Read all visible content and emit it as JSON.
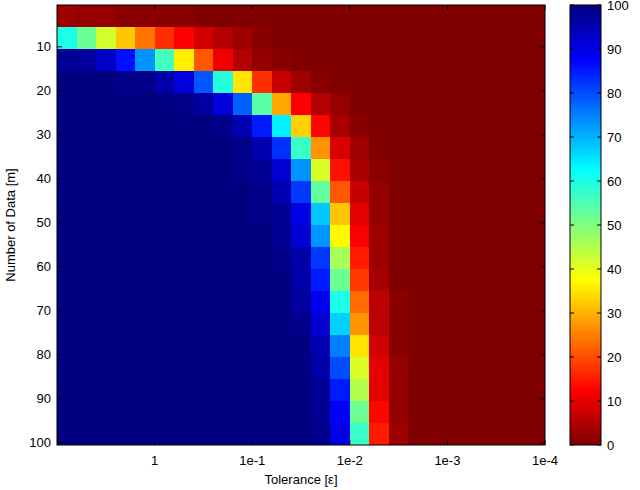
{
  "chart_data": {
    "type": "heatmap",
    "xlabel": "Tolerance [ε]",
    "ylabel": "Number of Data [m]",
    "log": "x",
    "xlim": [
      10,
      0.0001
    ],
    "xticks": [
      1,
      {
        "value": 0.1,
        "label": "1e-1"
      },
      {
        "value": 0.01,
        "label": "1e-2"
      },
      {
        "value": 0.001,
        "label": "1e-3"
      },
      {
        "value": 0.0001,
        "label": "1e-4"
      }
    ],
    "ylim": [
      0.5,
      100.5
    ],
    "yticks": [
      10,
      20,
      30,
      40,
      50,
      60,
      70,
      80,
      90,
      100
    ],
    "x_bins": [
      10,
      6.31,
      3.98,
      2.51,
      1.585,
      1,
      0.631,
      0.398,
      0.251,
      0.1585,
      0.1,
      0.0631,
      0.0398,
      0.0251,
      0.01585,
      0.01,
      0.00631,
      0.00398,
      0.00251,
      0.001585,
      0.001,
      0.000631,
      0.000398,
      0.000251,
      0.0001585,
      0.0001
    ],
    "y_bins": [
      0.5,
      5.5,
      10.5,
      15.5,
      20.5,
      25.5,
      30.5,
      35.5,
      40.5,
      45.5,
      50.5,
      55.5,
      60.5,
      65.5,
      70.5,
      75.5,
      80.5,
      85.5,
      90.5,
      95.5,
      100.5
    ],
    "z": [
      [
        3,
        2,
        2,
        1,
        1,
        1,
        1,
        0,
        0,
        0,
        0,
        0,
        0,
        0,
        0,
        0,
        0,
        0,
        0,
        0,
        0,
        0,
        0,
        0,
        0
      ],
      [
        60,
        52,
        42,
        32,
        24,
        17,
        12,
        8,
        5,
        3,
        1,
        0,
        0,
        0,
        0,
        0,
        0,
        0,
        0,
        0,
        0,
        0,
        0,
        0,
        0
      ],
      [
        98,
        97,
        93,
        86,
        73,
        56,
        36,
        21,
        11,
        5,
        2,
        1,
        0,
        0,
        0,
        0,
        0,
        0,
        0,
        0,
        0,
        0,
        0,
        0,
        0
      ],
      [
        100,
        100,
        100,
        99,
        99,
        96,
        91,
        79,
        59,
        35,
        17,
        7,
        3,
        1,
        0,
        0,
        0,
        0,
        0,
        0,
        0,
        0,
        0,
        0,
        0
      ],
      [
        100,
        100,
        100,
        100,
        100,
        100,
        99,
        97,
        91,
        78,
        54,
        29,
        12,
        5,
        2,
        0,
        0,
        0,
        0,
        0,
        0,
        0,
        0,
        0,
        0
      ],
      [
        100,
        100,
        100,
        100,
        100,
        100,
        100,
        100,
        99,
        95,
        85,
        64,
        33,
        13,
        4,
        1,
        0,
        0,
        0,
        0,
        0,
        0,
        0,
        0,
        0
      ],
      [
        100,
        100,
        100,
        100,
        100,
        100,
        100,
        100,
        100,
        99,
        95,
        83,
        57,
        27,
        9,
        3,
        0,
        0,
        0,
        0,
        0,
        0,
        0,
        0,
        0
      ],
      [
        100,
        100,
        100,
        100,
        100,
        100,
        100,
        100,
        100,
        99,
        98,
        92,
        73,
        41,
        14,
        4,
        1,
        0,
        0,
        0,
        0,
        0,
        0,
        0,
        0
      ],
      [
        100,
        100,
        100,
        100,
        100,
        100,
        100,
        100,
        100,
        100,
        99,
        95,
        82,
        53,
        21,
        7,
        2,
        0,
        0,
        0,
        0,
        0,
        0,
        0,
        0
      ],
      [
        100,
        100,
        100,
        100,
        100,
        100,
        100,
        100,
        100,
        100,
        99,
        98,
        90,
        68,
        32,
        10,
        2,
        0,
        0,
        0,
        0,
        0,
        0,
        0,
        0
      ],
      [
        100,
        100,
        100,
        100,
        100,
        100,
        100,
        100,
        100,
        100,
        100,
        98,
        92,
        73,
        37,
        12,
        3,
        0,
        0,
        0,
        0,
        0,
        0,
        0,
        0
      ],
      [
        100,
        100,
        100,
        100,
        100,
        100,
        100,
        100,
        100,
        100,
        100,
        99,
        96,
        82,
        46,
        15,
        3,
        0,
        0,
        0,
        0,
        0,
        0,
        0,
        0
      ],
      [
        100,
        100,
        100,
        100,
        100,
        100,
        100,
        100,
        100,
        100,
        100,
        100,
        96,
        85,
        52,
        18,
        4,
        0,
        0,
        0,
        0,
        0,
        0,
        0,
        0
      ],
      [
        100,
        100,
        100,
        100,
        100,
        100,
        100,
        100,
        100,
        100,
        100,
        100,
        97,
        89,
        60,
        23,
        6,
        1,
        0,
        0,
        0,
        0,
        0,
        0,
        0
      ],
      [
        100,
        100,
        100,
        100,
        100,
        100,
        100,
        100,
        100,
        100,
        100,
        100,
        99,
        92,
        67,
        27,
        6,
        1,
        0,
        0,
        0,
        0,
        0,
        0,
        0
      ],
      [
        100,
        100,
        100,
        100,
        100,
        100,
        100,
        100,
        100,
        100,
        100,
        100,
        100,
        95,
        75,
        35,
        8,
        1,
        0,
        0,
        0,
        0,
        0,
        0,
        0
      ],
      [
        100,
        100,
        100,
        100,
        100,
        100,
        100,
        100,
        100,
        100,
        100,
        100,
        100,
        96,
        80,
        41,
        10,
        2,
        0,
        0,
        0,
        0,
        0,
        0,
        0
      ],
      [
        100,
        100,
        100,
        100,
        100,
        100,
        100,
        100,
        100,
        100,
        100,
        100,
        100,
        98,
        85,
        45,
        10,
        2,
        0,
        0,
        0,
        0,
        0,
        0,
        0
      ],
      [
        100,
        100,
        100,
        100,
        100,
        100,
        100,
        100,
        100,
        100,
        100,
        100,
        100,
        98,
        88,
        52,
        13,
        2,
        0,
        0,
        0,
        0,
        0,
        0,
        0
      ],
      [
        100,
        100,
        100,
        100,
        100,
        100,
        100,
        100,
        100,
        100,
        100,
        100,
        100,
        99,
        90,
        57,
        15,
        3,
        0,
        0,
        0,
        0,
        0,
        0,
        0
      ]
    ],
    "zlim": [
      0,
      100
    ],
    "zticks": [
      0,
      10,
      20,
      30,
      40,
      50,
      60,
      70,
      80,
      90,
      100
    ]
  }
}
